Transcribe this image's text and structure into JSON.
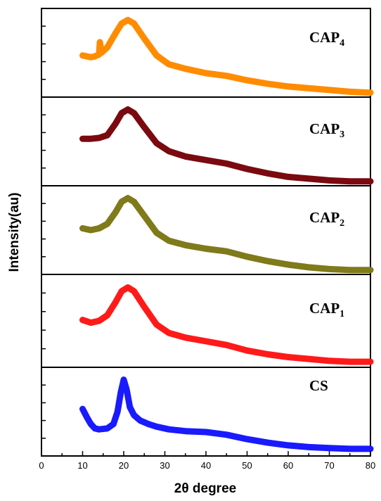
{
  "chart_data": {
    "type": "line",
    "xlabel": "2θ degree",
    "ylabel": "Intensity(au)",
    "xlim": [
      0,
      80
    ],
    "x_ticks": [
      0,
      10,
      20,
      30,
      40,
      50,
      60,
      70,
      80
    ],
    "x_tick_labels": [
      "0",
      "10",
      "20",
      "30",
      "40",
      "50",
      "60",
      "70",
      "80"
    ],
    "ylim": [
      0,
      1
    ],
    "grid": false,
    "legend": "none",
    "series": [
      {
        "name": "CAP",
        "subscript": "4",
        "color": "#ff8c00",
        "x": [
          10,
          12,
          13,
          14,
          14.2,
          14.6,
          16,
          18,
          19.5,
          21,
          22.5,
          25,
          28,
          31,
          35,
          40,
          45,
          50,
          55,
          60,
          65,
          70,
          75,
          80
        ],
        "y": [
          0.47,
          0.45,
          0.46,
          0.48,
          0.62,
          0.5,
          0.56,
          0.72,
          0.83,
          0.87,
          0.83,
          0.66,
          0.47,
          0.37,
          0.32,
          0.27,
          0.24,
          0.19,
          0.15,
          0.12,
          0.1,
          0.08,
          0.06,
          0.05
        ]
      },
      {
        "name": "CAP",
        "subscript": "3",
        "color": "#7a0a10",
        "x": [
          10,
          12,
          14,
          16,
          18,
          19.5,
          21,
          22.5,
          25,
          28,
          31,
          35,
          40,
          45,
          50,
          55,
          60,
          65,
          70,
          75,
          80
        ],
        "y": [
          0.53,
          0.53,
          0.54,
          0.57,
          0.7,
          0.82,
          0.86,
          0.82,
          0.66,
          0.48,
          0.39,
          0.33,
          0.29,
          0.25,
          0.19,
          0.14,
          0.1,
          0.08,
          0.06,
          0.05,
          0.05
        ]
      },
      {
        "name": "CAP",
        "subscript": "2",
        "color": "#7f7a1a",
        "x": [
          10,
          12,
          14,
          16,
          18,
          19.5,
          21,
          22.5,
          25,
          28,
          31,
          35,
          40,
          45,
          50,
          55,
          60,
          65,
          70,
          75,
          80
        ],
        "y": [
          0.52,
          0.5,
          0.52,
          0.57,
          0.7,
          0.82,
          0.86,
          0.82,
          0.66,
          0.47,
          0.38,
          0.33,
          0.29,
          0.26,
          0.2,
          0.15,
          0.11,
          0.08,
          0.06,
          0.05,
          0.05
        ]
      },
      {
        "name": "CAP",
        "subscript": "1",
        "color": "#ff1a1a",
        "x": [
          10,
          12,
          14,
          16,
          18,
          19.5,
          21,
          22.5,
          25,
          28,
          31,
          35,
          40,
          45,
          50,
          55,
          60,
          65,
          70,
          75,
          80
        ],
        "y": [
          0.51,
          0.48,
          0.5,
          0.56,
          0.7,
          0.82,
          0.86,
          0.82,
          0.65,
          0.46,
          0.37,
          0.32,
          0.28,
          0.24,
          0.18,
          0.14,
          0.11,
          0.09,
          0.07,
          0.06,
          0.06
        ]
      },
      {
        "name": "CS",
        "subscript": "",
        "color": "#1a1aff",
        "x": [
          10,
          11,
          12,
          13,
          14,
          16,
          17.5,
          18.5,
          19.3,
          20,
          20.7,
          21.5,
          22.5,
          24,
          26,
          28,
          31,
          35,
          40,
          45,
          50,
          55,
          60,
          65,
          70,
          75,
          80
        ],
        "y": [
          0.53,
          0.44,
          0.36,
          0.31,
          0.3,
          0.31,
          0.36,
          0.5,
          0.72,
          0.86,
          0.75,
          0.55,
          0.46,
          0.4,
          0.36,
          0.33,
          0.3,
          0.28,
          0.27,
          0.24,
          0.19,
          0.15,
          0.12,
          0.1,
          0.09,
          0.08,
          0.08
        ]
      }
    ]
  }
}
